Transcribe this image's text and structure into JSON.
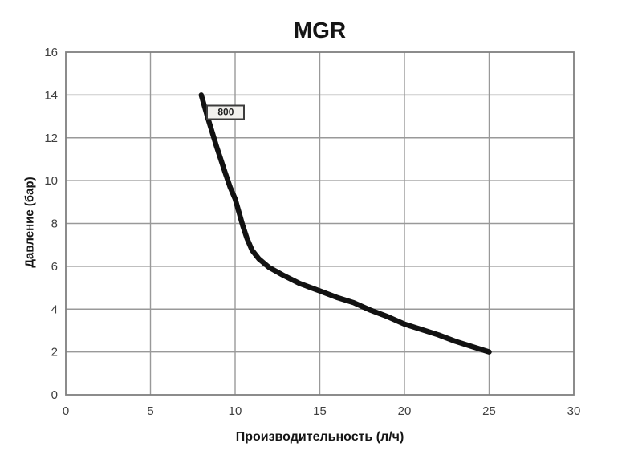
{
  "chart_data": {
    "type": "line",
    "title": "MGR",
    "xlabel": "Производительность (л/ч)",
    "ylabel": "Давление (бар)",
    "xlim": [
      0,
      30
    ],
    "ylim": [
      0,
      16
    ],
    "xticks": [
      0,
      5,
      10,
      15,
      20,
      25,
      30
    ],
    "yticks": [
      0,
      2,
      4,
      6,
      8,
      10,
      12,
      14,
      16
    ],
    "grid": true,
    "legend_position": "none",
    "series": [
      {
        "name": "800",
        "annotation": {
          "text": "800",
          "x": 9.45,
          "y": 13.2
        },
        "points": [
          [
            8,
            14
          ],
          [
            8.4,
            12.9
          ],
          [
            8.9,
            11.6
          ],
          [
            9.4,
            10.4
          ],
          [
            9.7,
            9.7
          ],
          [
            10,
            9.15
          ],
          [
            10.2,
            8.6
          ],
          [
            10.45,
            7.9
          ],
          [
            10.7,
            7.3
          ],
          [
            11,
            6.75
          ],
          [
            11.4,
            6.35
          ],
          [
            12,
            5.95
          ],
          [
            12.8,
            5.6
          ],
          [
            13.8,
            5.2
          ],
          [
            15,
            4.85
          ],
          [
            16,
            4.55
          ],
          [
            17,
            4.3
          ],
          [
            18,
            3.95
          ],
          [
            19,
            3.65
          ],
          [
            20,
            3.3
          ],
          [
            21,
            3.05
          ],
          [
            22,
            2.8
          ],
          [
            23,
            2.5
          ],
          [
            24,
            2.25
          ],
          [
            25,
            2
          ]
        ]
      }
    ],
    "colors": {
      "line": "#121212",
      "grid": "#999999",
      "border": "#808080",
      "tick_text": "#3f3f3f",
      "label_text": "#151515",
      "annotation_bg": "#f2f1ee",
      "annotation_border": "#3c3c3c",
      "background": "#ffffff"
    }
  }
}
